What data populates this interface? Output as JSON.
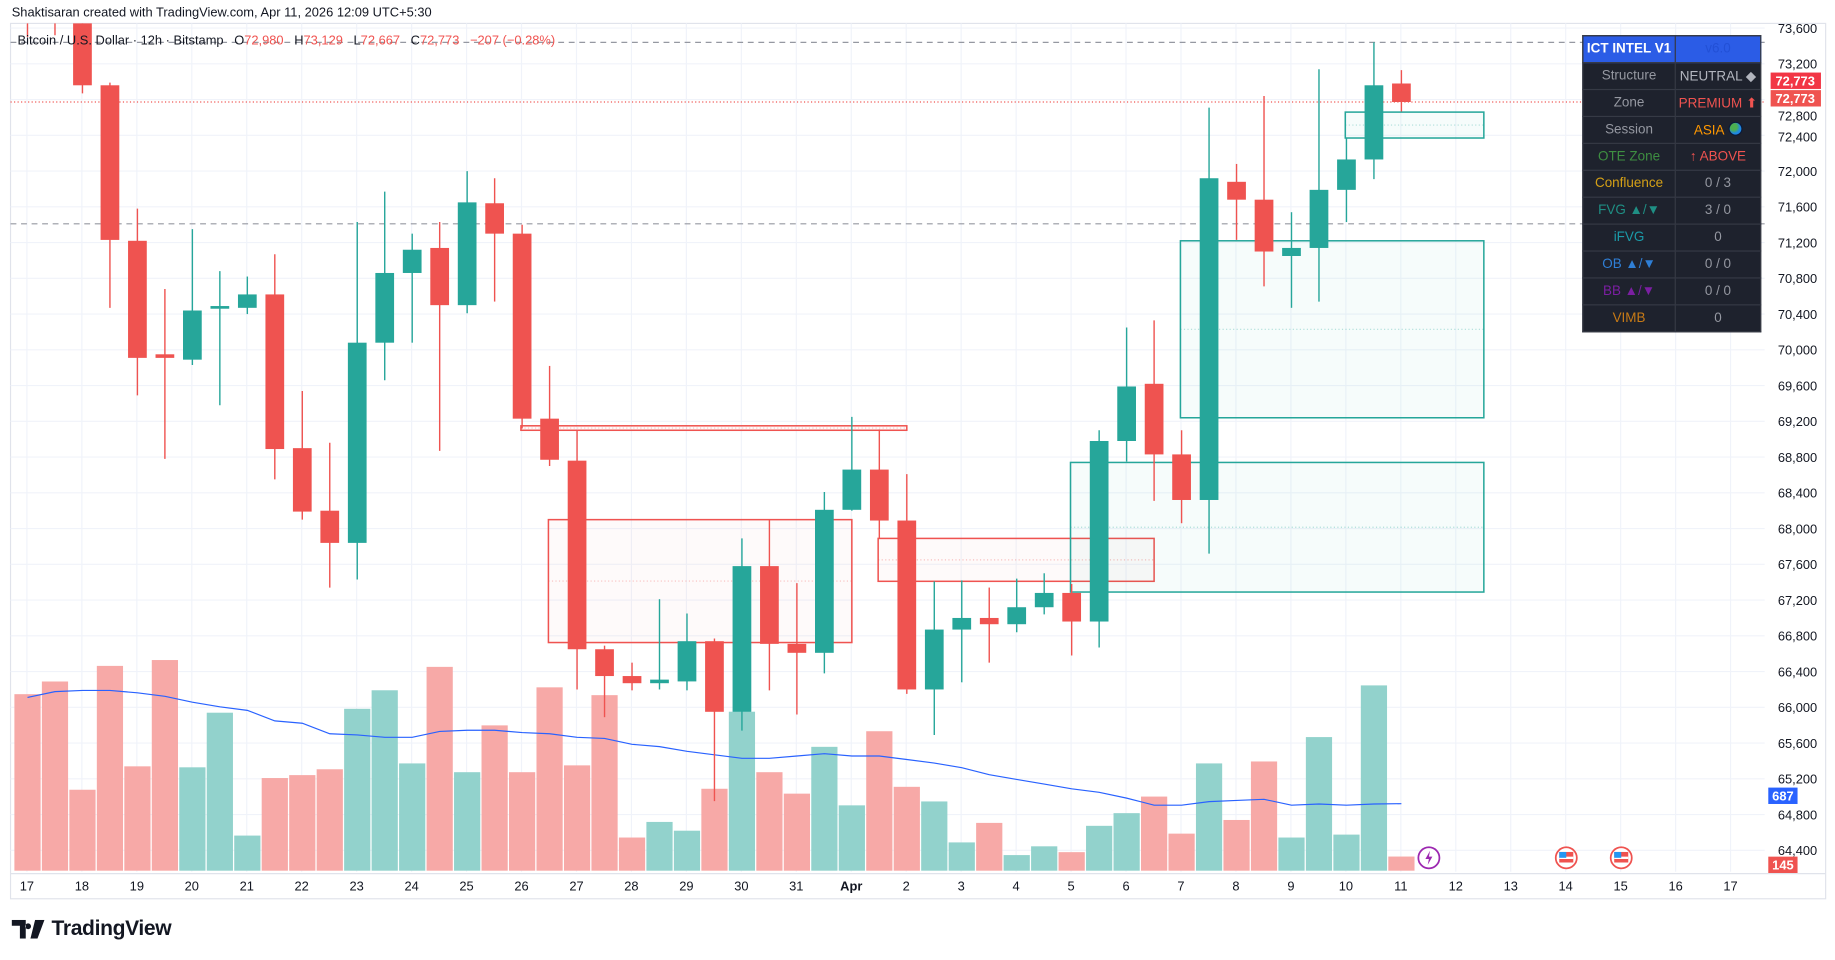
{
  "credit": "Shaktisaran created with TradingView.com, Apr 11, 2026 12:09 UTC+5:30",
  "legend": {
    "symbol": "Bitcoin / U.S. Dollar · 12h · Bitstamp",
    "o_label": "O",
    "o": "72,980",
    "h_label": "H",
    "h": "73,129",
    "l_label": "L",
    "l": "72,667",
    "c_label": "C",
    "c": "72,773",
    "change": "−207 (−0.28%)"
  },
  "colors": {
    "up": "#26a69a",
    "down": "#ef5350",
    "up_vol": "#92d2cc",
    "down_vol": "#f7a9a7",
    "ma": "#2962ff",
    "grid": "#f0f3fa"
  },
  "panel": {
    "title": "ICT INTEL V1",
    "version": "v6.0",
    "rows": [
      {
        "label": "Structure",
        "value": "NEUTRAL ◆",
        "label_color": "#9598a1",
        "value_color": "#b2b5be"
      },
      {
        "label": "Zone",
        "value": "PREMIUM ⬆",
        "label_color": "#9598a1",
        "value_color": "#f05350"
      },
      {
        "label": "Session",
        "value": "ASIA",
        "label_color": "#9598a1",
        "value_color": "#ff9800",
        "icon": "globe-icon"
      },
      {
        "label": "OTE Zone",
        "value": "↑ ABOVE",
        "label_color": "#3e8e41",
        "value_color": "#f05350"
      },
      {
        "label": "Confluence",
        "value": "0 / 3",
        "label_color": "#d4a017",
        "value_color": "#9598a1"
      },
      {
        "label": "FVG ▲/▼",
        "value": "3 / 0",
        "label_color": "#1f8f84",
        "value_color": "#9598a1"
      },
      {
        "label": "iFVG",
        "value": "0",
        "label_color": "#1b9aa8",
        "value_color": "#9598a1"
      },
      {
        "label": "OB ▲/▼",
        "value": "0 / 0",
        "label_color": "#2f7fd6",
        "value_color": "#9598a1"
      },
      {
        "label": "BB ▲/▼",
        "value": "0 / 0",
        "label_color": "#7b1fa2",
        "value_color": "#9598a1"
      },
      {
        "label": "VIMB",
        "value": "0",
        "label_color": "#c77a16",
        "value_color": "#9598a1"
      }
    ]
  },
  "chart_data": {
    "type": "candlestick",
    "interval": "12h",
    "price_ticks": [
      "73,600",
      "73,200",
      "72,800",
      "72,400",
      "72,000",
      "71,600",
      "71,200",
      "70,800",
      "70,400",
      "70,000",
      "69,600",
      "69,200",
      "68,800",
      "68,400",
      "68,000",
      "67,600",
      "67,200",
      "66,800",
      "66,400",
      "66,000",
      "65,600",
      "65,200",
      "64,800",
      "64,400"
    ],
    "ylim": [
      64200,
      73650
    ],
    "date_labels": [
      "17",
      "18",
      "19",
      "20",
      "21",
      "22",
      "23",
      "24",
      "25",
      "26",
      "27",
      "28",
      "29",
      "30",
      "31",
      "Apr",
      "2",
      "3",
      "4",
      "5",
      "6",
      "7",
      "8",
      "9",
      "10",
      "11",
      "12",
      "13",
      "14",
      "15",
      "16",
      "17"
    ],
    "candles": [
      [
        74300,
        74700,
        73500,
        74000
      ],
      [
        74100,
        74400,
        73520,
        73800
      ],
      [
        74000,
        74200,
        72870,
        72960
      ],
      [
        72960,
        72990,
        70470,
        71230
      ],
      [
        71220,
        71580,
        69490,
        69910
      ],
      [
        69950,
        70680,
        68780,
        69910
      ],
      [
        69890,
        71350,
        69830,
        70440
      ],
      [
        70460,
        70880,
        69380,
        70490
      ],
      [
        70470,
        70820,
        70400,
        70620
      ],
      [
        70620,
        71070,
        68550,
        68890
      ],
      [
        68900,
        69540,
        68100,
        68190
      ],
      [
        68200,
        68960,
        67340,
        67840
      ],
      [
        67840,
        71430,
        67430,
        70080
      ],
      [
        70080,
        71770,
        69660,
        70860
      ],
      [
        70860,
        71300,
        70080,
        71120
      ],
      [
        71140,
        71430,
        68870,
        70500
      ],
      [
        70500,
        72000,
        70410,
        71650
      ],
      [
        71640,
        71920,
        70540,
        71300
      ],
      [
        71300,
        71400,
        69120,
        69230
      ],
      [
        69230,
        69820,
        68700,
        68770
      ],
      [
        68760,
        69100,
        66200,
        66650
      ],
      [
        66650,
        66690,
        65890,
        66350
      ],
      [
        66350,
        66500,
        66190,
        66270
      ],
      [
        66270,
        67210,
        66200,
        66310
      ],
      [
        66290,
        67050,
        66190,
        66740
      ],
      [
        66740,
        66770,
        64950,
        65950
      ],
      [
        65950,
        67890,
        65740,
        67580
      ],
      [
        67580,
        68100,
        66190,
        66710
      ],
      [
        66710,
        67390,
        65920,
        66610
      ],
      [
        66610,
        68410,
        66380,
        68210
      ],
      [
        68210,
        69250,
        68200,
        68660
      ],
      [
        68660,
        69110,
        67890,
        68090
      ],
      [
        68090,
        68610,
        66150,
        66200
      ],
      [
        66200,
        67410,
        65690,
        66870
      ],
      [
        66870,
        67420,
        66280,
        67000
      ],
      [
        67000,
        67340,
        66500,
        66930
      ],
      [
        66930,
        67440,
        66840,
        67120
      ],
      [
        67120,
        67500,
        67040,
        67280
      ],
      [
        67280,
        67380,
        66580,
        66960
      ],
      [
        66960,
        69100,
        66670,
        68980
      ],
      [
        68980,
        70250,
        68750,
        69590
      ],
      [
        69620,
        70330,
        68310,
        68830
      ],
      [
        68830,
        69100,
        68060,
        68320
      ],
      [
        68320,
        72710,
        67720,
        71920
      ],
      [
        71880,
        72080,
        71230,
        71680
      ],
      [
        71680,
        72840,
        70710,
        71100
      ],
      [
        71050,
        71540,
        70470,
        71140
      ],
      [
        71140,
        73140,
        70540,
        71790
      ],
      [
        71790,
        72370,
        71430,
        72130
      ],
      [
        72130,
        73440,
        71910,
        72960
      ],
      [
        72980,
        73129,
        72667,
        72773
      ]
    ],
    "volume": [
      1810,
      1940,
      830,
      2100,
      1070,
      2160,
      1060,
      1620,
      360,
      950,
      980,
      1040,
      1660,
      1850,
      1100,
      2090,
      1010,
      1490,
      1010,
      1880,
      1080,
      1800,
      340,
      500,
      410,
      840,
      1630,
      1010,
      790,
      1270,
      670,
      1430,
      860,
      710,
      290,
      490,
      160,
      250,
      190,
      460,
      590,
      760,
      380,
      1100,
      520,
      1120,
      340,
      1370,
      370,
      1900,
      145
    ],
    "volume_ma": [
      1776,
      1836,
      1848,
      1848,
      1824,
      1788,
      1728,
      1680,
      1644,
      1536,
      1512,
      1404,
      1392,
      1368,
      1368,
      1428,
      1440,
      1440,
      1416,
      1404,
      1368,
      1356,
      1296,
      1272,
      1224,
      1188,
      1152,
      1152,
      1176,
      1200,
      1176,
      1176,
      1140,
      1104,
      1056,
      984,
      936,
      888,
      840,
      804,
      744,
      672,
      672,
      708,
      720,
      732,
      672,
      684,
      672,
      684,
      687
    ],
    "zones": [
      {
        "kind": "bearish",
        "from_bar": 18,
        "to_bar": 32,
        "top": 69150,
        "bottom": 69100
      },
      {
        "kind": "bearish",
        "from_bar": 19,
        "to_bar": 30,
        "top": 68100,
        "bottom": 66725
      },
      {
        "kind": "bearish",
        "from_bar": 31,
        "to_bar": 41,
        "top": 67890,
        "bottom": 67410
      },
      {
        "kind": "bullish",
        "from_bar": 38,
        "to_bar": 53,
        "top": 68740,
        "bottom": 67290
      },
      {
        "kind": "bullish",
        "from_bar": 42,
        "to_bar": 53,
        "top": 71220,
        "bottom": 69240
      },
      {
        "kind": "bullish",
        "from_bar": 48,
        "to_bar": 53,
        "top": 72660,
        "bottom": 72370
      }
    ],
    "hlines": [
      {
        "price": 73440,
        "style": "dashed"
      },
      {
        "price": 71410,
        "style": "dashed"
      },
      {
        "price": 72773,
        "style": "dotted-red"
      }
    ],
    "price_badges": [
      {
        "text": "72,773",
        "price": 72960,
        "color": "#f23645"
      },
      {
        "text": "72,773",
        "price": 72773,
        "color": "#ef5350"
      }
    ],
    "volume_badges": [
      {
        "text": "687",
        "value": 687,
        "color": "#2962ff"
      },
      {
        "text": "145",
        "value": 145,
        "color": "#ef5350"
      }
    ],
    "events": [
      {
        "icon": "lightning-icon",
        "bar": 51
      },
      {
        "icon": "us-flag-icon",
        "bar": 56
      },
      {
        "icon": "us-flag-icon",
        "bar": 58
      }
    ]
  },
  "brand": "TradingView"
}
